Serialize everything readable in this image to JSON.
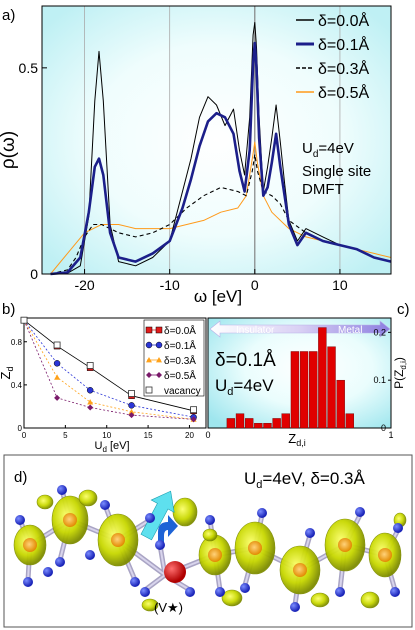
{
  "panel_labels": {
    "a": "a)",
    "b": "b)",
    "c": "c)",
    "d": "d)"
  },
  "colors": {
    "d0": "#000000",
    "d1": "#1c1f8a",
    "d3": "#000000",
    "d5": "#ff9a1a",
    "bar": "#e00000",
    "bg_cyan": "#c8f4f8",
    "b_d0": "#e21b1b",
    "b_d1": "#2b35d6",
    "b_d3": "#ffa21a",
    "b_d5": "#7a1a6a",
    "b_vac": "#333333"
  },
  "chart_data": [
    {
      "type": "line",
      "panel": "a",
      "ylabel": "ρ(ω)",
      "xlabel": "ω [eV]",
      "xlim": [
        -25,
        16
      ],
      "ylim": [
        0,
        0.65
      ],
      "xticks": [
        -20,
        -10,
        0,
        10
      ],
      "xtick_labels": [
        "-20",
        "-10",
        "0",
        "10"
      ],
      "yticks": [
        0,
        0.5
      ],
      "ytick_labels": [
        "0",
        "0.5"
      ],
      "legend_position": "top-right",
      "annotations": [
        "U",
        "d",
        "=4eV",
        "Single site",
        "DMFT"
      ],
      "series": [
        {
          "name": "δ=0.0Å",
          "style": "solid-thin",
          "x": [
            -24,
            -22,
            -20.5,
            -19.5,
            -18.8,
            -18.3,
            -17.8,
            -17,
            -16,
            -14,
            -12,
            -10,
            -8.5,
            -7.5,
            -6.5,
            -5.5,
            -4.5,
            -3.5,
            -2.5,
            -1.8,
            -1.2,
            -0.6,
            -0.2,
            0,
            0.2,
            0.5,
            1,
            1.5,
            2,
            2.5,
            3,
            3.5,
            4,
            5,
            6,
            8,
            10,
            12,
            14,
            16
          ],
          "y": [
            0.0,
            0.002,
            0.02,
            0.14,
            0.42,
            0.54,
            0.42,
            0.12,
            0.03,
            0.02,
            0.04,
            0.08,
            0.2,
            0.28,
            0.38,
            0.43,
            0.41,
            0.36,
            0.4,
            0.3,
            0.24,
            0.38,
            0.58,
            0.61,
            0.55,
            0.38,
            0.2,
            0.26,
            0.33,
            0.41,
            0.32,
            0.22,
            0.13,
            0.08,
            0.11,
            0.09,
            0.07,
            0.06,
            0.04,
            0.03
          ]
        },
        {
          "name": "δ=0.1Å",
          "style": "solid-thick",
          "x": [
            -24,
            -22,
            -20.5,
            -19.5,
            -18.8,
            -18.3,
            -17.8,
            -17,
            -16,
            -14,
            -12,
            -10,
            -8.5,
            -7.5,
            -6.5,
            -5.5,
            -4.5,
            -3.5,
            -2.5,
            -1.8,
            -1.2,
            -0.6,
            -0.2,
            0,
            0.2,
            0.5,
            1,
            1.5,
            2,
            2.5,
            3,
            3.5,
            4,
            5,
            6,
            8,
            10,
            12,
            14,
            16
          ],
          "y": [
            0.0,
            0.004,
            0.04,
            0.15,
            0.26,
            0.28,
            0.24,
            0.1,
            0.04,
            0.03,
            0.05,
            0.08,
            0.16,
            0.23,
            0.31,
            0.37,
            0.39,
            0.38,
            0.34,
            0.25,
            0.2,
            0.3,
            0.51,
            0.56,
            0.5,
            0.33,
            0.19,
            0.21,
            0.27,
            0.34,
            0.26,
            0.19,
            0.12,
            0.07,
            0.1,
            0.08,
            0.07,
            0.06,
            0.04,
            0.03
          ]
        },
        {
          "name": "δ=0.3Å",
          "style": "dashed",
          "x": [
            -24,
            -22,
            -21,
            -20,
            -19,
            -18,
            -17,
            -16,
            -14,
            -12,
            -10,
            -8,
            -6,
            -4,
            -2,
            -1,
            -0.3,
            0,
            0.3,
            1,
            2,
            3,
            4,
            6,
            8,
            10,
            12,
            14,
            16
          ],
          "y": [
            0.0,
            0.01,
            0.04,
            0.09,
            0.12,
            0.12,
            0.11,
            0.1,
            0.09,
            0.1,
            0.12,
            0.16,
            0.19,
            0.21,
            0.2,
            0.19,
            0.25,
            0.29,
            0.25,
            0.2,
            0.19,
            0.17,
            0.13,
            0.1,
            0.08,
            0.07,
            0.06,
            0.04,
            0.03
          ]
        },
        {
          "name": "δ=0.5Å",
          "style": "solid-thin",
          "x": [
            -24,
            -22,
            -20,
            -18,
            -16,
            -14,
            -12,
            -10,
            -8,
            -6,
            -4,
            -2,
            -1,
            -0.3,
            0,
            0.3,
            1,
            2,
            4,
            6,
            8,
            10,
            12,
            14,
            16
          ],
          "y": [
            0.0,
            0.05,
            0.1,
            0.12,
            0.12,
            0.11,
            0.11,
            0.11,
            0.12,
            0.13,
            0.15,
            0.16,
            0.19,
            0.28,
            0.32,
            0.27,
            0.19,
            0.15,
            0.11,
            0.09,
            0.08,
            0.07,
            0.06,
            0.05,
            0.04
          ]
        }
      ]
    },
    {
      "type": "scatter",
      "panel": "b",
      "ylabel": "Z",
      "ylabel_sub": "d",
      "xlabel": "U",
      "xlabel_sub": "d",
      "xlabel_unit": " [eV]",
      "xlim": [
        0,
        22
      ],
      "ylim": [
        0,
        1.0
      ],
      "xticks": [
        0,
        5,
        10,
        15,
        20
      ],
      "xtick_labels": [
        "0",
        "5",
        "10",
        "15",
        "20"
      ],
      "yticks": [
        0,
        0.4,
        0.8
      ],
      "ytick_labels": [
        "0",
        "0.4",
        "0.8"
      ],
      "legend_position": "right",
      "series": [
        {
          "name": "δ=0.0Å",
          "marker": "square",
          "x": [
            0,
            4,
            8,
            13,
            20.5
          ],
          "y": [
            1.0,
            0.76,
            0.56,
            0.3,
            0.16
          ]
        },
        {
          "name": "δ=0.1Å",
          "marker": "circle",
          "x": [
            0,
            4,
            8,
            13,
            20.5
          ],
          "y": [
            1.0,
            0.6,
            0.35,
            0.21,
            0.1
          ]
        },
        {
          "name": "δ=0.3Å",
          "marker": "triangle",
          "x": [
            0,
            4,
            8,
            13,
            20.5
          ],
          "y": [
            1.0,
            0.47,
            0.24,
            0.15,
            0.08
          ]
        },
        {
          "name": "δ=0.5Å",
          "marker": "diamond",
          "x": [
            0,
            4,
            8,
            13,
            20.5
          ],
          "y": [
            1.0,
            0.28,
            0.19,
            0.12,
            0.08
          ]
        },
        {
          "name": "vacancy",
          "marker": "open-square",
          "x": [
            0,
            4,
            8,
            13,
            20.5
          ],
          "y": [
            1.0,
            0.77,
            0.58,
            0.32,
            0.17
          ]
        }
      ]
    },
    {
      "type": "bar",
      "panel": "c",
      "xlabel": "Z",
      "xlabel_sub": "d,i",
      "ylabel": "P(Z",
      "ylabel_sub": "d,i",
      "ylabel_tail": ")",
      "xlim": [
        0,
        1
      ],
      "ylim": [
        0,
        0.23
      ],
      "xticks": [
        0,
        1
      ],
      "xtick_labels": [
        "0",
        "1"
      ],
      "yticks": [
        0,
        0.1,
        0.2
      ],
      "ytick_labels": [
        "0",
        "0.1",
        "0.2"
      ],
      "bin_width": 0.05,
      "bin_starts": [
        0.1,
        0.15,
        0.2,
        0.25,
        0.3,
        0.35,
        0.4,
        0.45,
        0.5,
        0.55,
        0.6,
        0.65,
        0.7,
        0.75
      ],
      "values": [
        0.02,
        0.03,
        0.02,
        0.01,
        0.01,
        0.02,
        0.03,
        0.16,
        0.16,
        0.16,
        0.21,
        0.17,
        0.1,
        0.03
      ],
      "annotations": {
        "insulator": "Insulator",
        "metal": "Metal",
        "delta": "δ=0.1Å",
        "ud": "U",
        "ud_sub": "d",
        "ud_val": "=4eV"
      }
    }
  ],
  "panel_d": {
    "title_u": "U",
    "title_sub": "d",
    "title_rest": "=4eV, δ=0.3Å",
    "vacancy_label": "(V",
    "vacancy_tail": ")"
  }
}
